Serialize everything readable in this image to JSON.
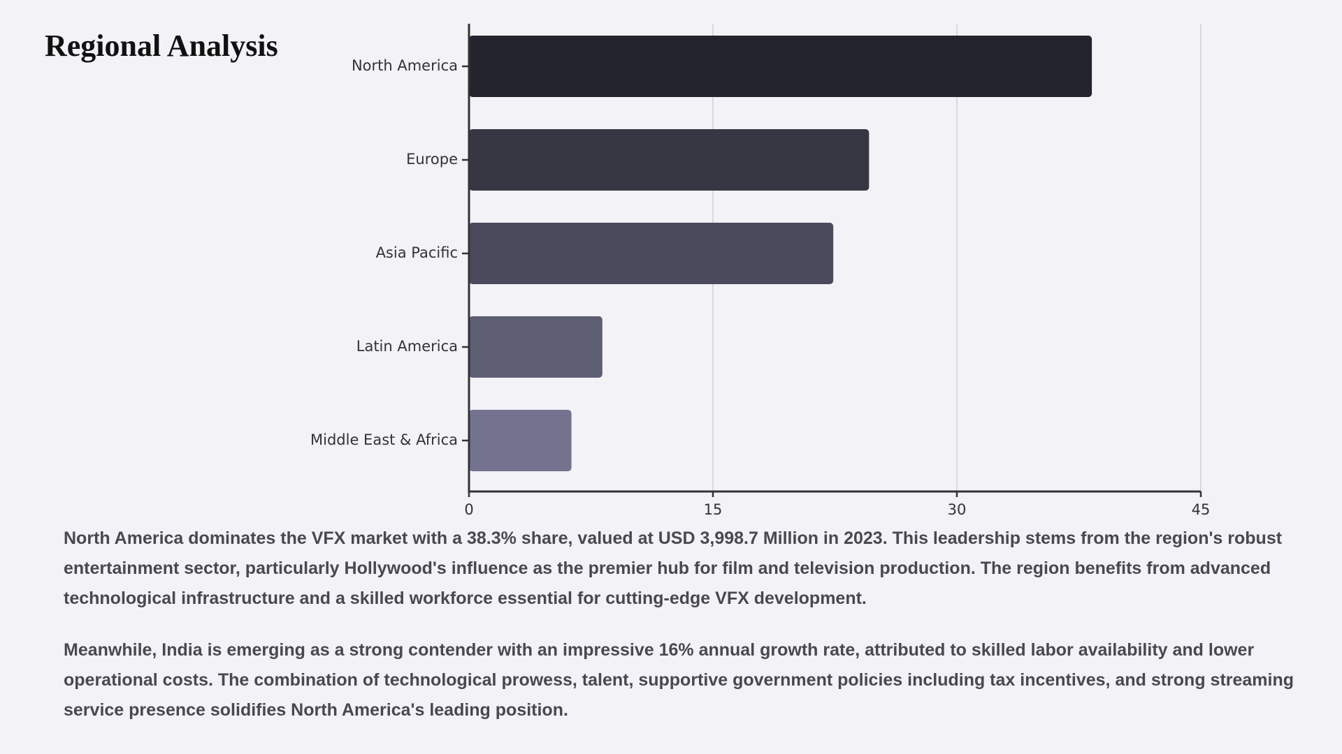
{
  "heading": "Regional Analysis",
  "chart_data": {
    "type": "bar",
    "orientation": "horizontal",
    "categories": [
      "North America",
      "Europe",
      "Asia Pacific",
      "Latin America",
      "Middle East & Africa"
    ],
    "values": [
      38.3,
      24.6,
      22.4,
      8.2,
      6.3
    ],
    "colors": [
      "#23232d",
      "#373744",
      "#4a4a5c",
      "#5e5e73",
      "#737390"
    ],
    "xlim": [
      0,
      45
    ],
    "xticks": [
      0,
      15,
      30,
      45
    ],
    "grid": true
  },
  "paragraphs": [
    "North America dominates the VFX market with a 38.3% share, valued at USD 3,998.7 Million in 2023. This leadership stems from the region's robust entertainment sector, particularly Hollywood's influence as the premier hub for film and television production. The region benefits from advanced technological infrastructure and a skilled workforce essential for cutting-edge VFX development.",
    "Meanwhile, India is emerging as a strong contender with an impressive 16% annual growth rate, attributed to skilled labor availability and lower operational costs. The combination of technological prowess, talent, supportive government policies including tax incentives, and strong streaming service presence solidifies North America's leading position."
  ]
}
